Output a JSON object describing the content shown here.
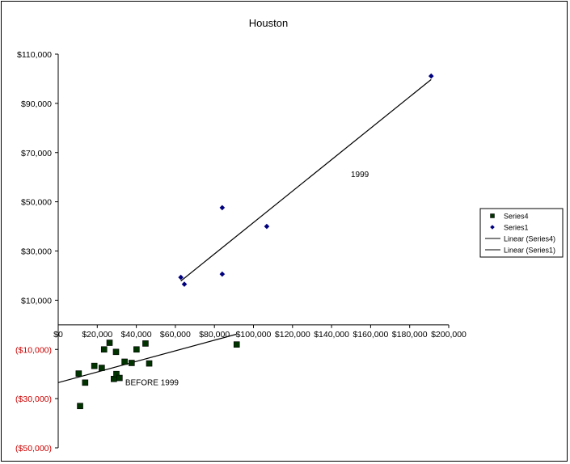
{
  "chart_data": {
    "type": "scatter",
    "title": "Houston",
    "xlabel": "",
    "ylabel": "",
    "xlim": [
      0,
      200000
    ],
    "ylim": [
      -50000,
      110000
    ],
    "x_ticks": [
      0,
      20000,
      40000,
      60000,
      80000,
      100000,
      120000,
      140000,
      160000,
      180000,
      200000
    ],
    "x_tick_labels": [
      "$0",
      "$20,000",
      "$40,000",
      "$60,000",
      "$80,000",
      "$100,000",
      "$120,000",
      "$140,000",
      "$160,000",
      "$180,000",
      "$200,000"
    ],
    "y_ticks": [
      110000,
      90000,
      70000,
      50000,
      30000,
      10000,
      -10000,
      -30000,
      -50000
    ],
    "y_tick_labels": [
      "$110,000",
      "$90,000",
      "$70,000",
      "$50,000",
      "$30,000",
      "$10,000",
      "($10,000)",
      "($30,000)",
      "($50,000)"
    ],
    "negative_tick_color": "#cc0000",
    "grid": false,
    "legend_position": "right",
    "series": [
      {
        "name": "Series4",
        "marker": "square",
        "color": "#003300",
        "points": [
          {
            "x": 10500,
            "y": -19800
          },
          {
            "x": 11200,
            "y": -33000
          },
          {
            "x": 13800,
            "y": -23500
          },
          {
            "x": 18500,
            "y": -16700
          },
          {
            "x": 22300,
            "y": -17500
          },
          {
            "x": 23500,
            "y": -10000
          },
          {
            "x": 26300,
            "y": -7300
          },
          {
            "x": 28500,
            "y": -22000
          },
          {
            "x": 29600,
            "y": -11000
          },
          {
            "x": 29800,
            "y": -20000
          },
          {
            "x": 31400,
            "y": -21600
          },
          {
            "x": 34000,
            "y": -15000
          },
          {
            "x": 37600,
            "y": -15500
          },
          {
            "x": 40100,
            "y": -10000
          },
          {
            "x": 44700,
            "y": -7600
          },
          {
            "x": 46600,
            "y": -15700
          },
          {
            "x": 91400,
            "y": -8000
          }
        ]
      },
      {
        "name": "Series1",
        "marker": "diamond",
        "color": "#00007f",
        "points": [
          {
            "x": 62800,
            "y": 19300
          },
          {
            "x": 64600,
            "y": 16500
          },
          {
            "x": 84000,
            "y": 47600
          },
          {
            "x": 84000,
            "y": 20600
          },
          {
            "x": 106800,
            "y": 40000
          },
          {
            "x": 191000,
            "y": 101100
          }
        ]
      }
    ],
    "trendlines": [
      {
        "name": "Linear (Series4)",
        "of": "Series4",
        "x_start": 0,
        "x_end": 91400,
        "y_start": -23500,
        "y_end": -3800
      },
      {
        "name": "Linear (Series1)",
        "of": "Series1",
        "x_start": 62800,
        "x_end": 191000,
        "y_start": 17800,
        "y_end": 99700
      }
    ],
    "annotations": [
      {
        "text": "1999",
        "x": 154500,
        "y": 61300
      },
      {
        "text": "BEFORE 1999",
        "x": 48000,
        "y": -23300
      }
    ]
  }
}
